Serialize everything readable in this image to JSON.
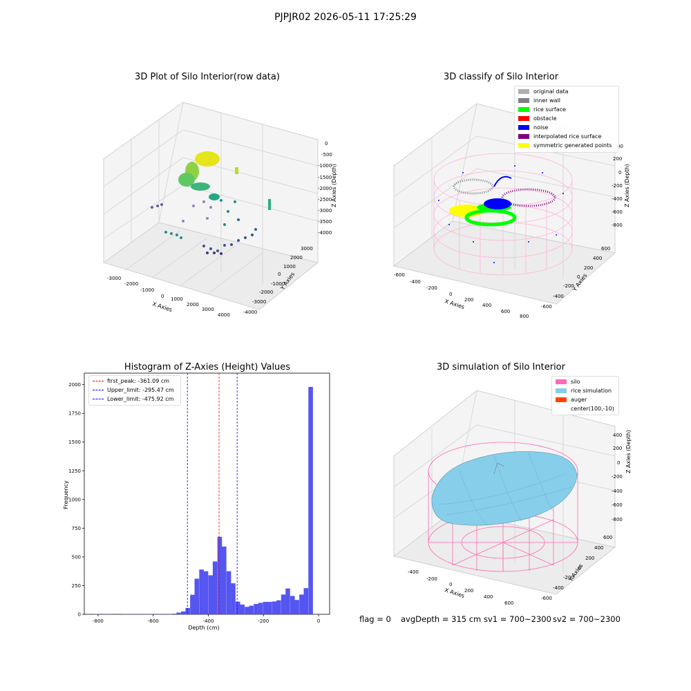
{
  "suptitle": "PJPJR02 2026-05-11 17:25:29",
  "panels": {
    "raw": {
      "title": "3D Plot of Silo Interior(row data)",
      "xlabel": "X Axies",
      "ylabel": "Y Axies",
      "zlabel": "Z Axies (Depth)",
      "xticks": [
        "-3000",
        "-2000",
        "-1000",
        "0",
        "1000",
        "2000",
        "3000",
        "4000"
      ],
      "yticks": [
        "3000",
        "2000",
        "1000",
        "0",
        "-1000",
        "-2000",
        "-3000",
        "-4000"
      ],
      "zticks": [
        "0",
        "-500",
        "-1000",
        "-1500",
        "-2000",
        "-2500",
        "-3000",
        "-3500",
        "-4000"
      ]
    },
    "classify": {
      "title": "3D classify of Silo Interior",
      "xlabel": "X Axies",
      "ylabel": "Y Axies",
      "zlabel": "Z Axies (Depth)",
      "xticks": [
        "-600",
        "-400",
        "-200",
        "0",
        "200",
        "400",
        "600",
        "800"
      ],
      "yticks": [
        "600",
        "400",
        "200",
        "0",
        "-200",
        "-400",
        "-600"
      ],
      "zticks": [
        "200",
        "0",
        "-200",
        "-400",
        "-600",
        "-800"
      ],
      "zticks_top_cut": "00",
      "legend": [
        {
          "label": "original data",
          "color": "#b0b0b0"
        },
        {
          "label": "inner wall",
          "color": "#808080"
        },
        {
          "label": "rice surface",
          "color": "#00ff00"
        },
        {
          "label": "obstacle",
          "color": "#ff0000"
        },
        {
          "label": "noise",
          "color": "#0000ff"
        },
        {
          "label": "interpolated rice surface",
          "color": "#800080"
        },
        {
          "label": "symmetric generated points",
          "color": "#ffff00"
        }
      ]
    },
    "simulation": {
      "title": "3D simulation of Silo Interior",
      "xlabel": "X Axies",
      "ylabel": "Y Axies",
      "zlabel": "Z Axies (Depth)",
      "xticks": [
        "-400",
        "-200",
        "0",
        "200",
        "400",
        "600"
      ],
      "yticks": [
        "600",
        "400",
        "200",
        "0",
        "-200",
        "-400",
        "-600"
      ],
      "zticks": [
        "400",
        "200",
        "0",
        "-200",
        "-400",
        "-600",
        "-800"
      ],
      "legend": [
        {
          "label": "silo",
          "color": "#ff69b4"
        },
        {
          "label": "rice simulation",
          "color": "#87ceeb"
        },
        {
          "label": "auger",
          "color": "#ff4500"
        },
        {
          "label": "center(100,-10)",
          "color": ""
        }
      ]
    }
  },
  "footer": {
    "flag": "flag = 0",
    "avg": "avgDepth = 315 cm",
    "sv1": "sv1 = 700~2300",
    "sv2": "sv2 = 700~2300"
  },
  "chart_data": [
    {
      "type": "bar",
      "title": "Histogram of Z-Axies (Height) Values",
      "xlabel": "Depth (cm)",
      "ylabel": "Frequency",
      "xlim": [
        -850,
        40
      ],
      "ylim": [
        0,
        2100
      ],
      "xticks": [
        -800,
        -600,
        -400,
        -200,
        0
      ],
      "yticks": [
        0,
        250,
        500,
        750,
        1000,
        1250,
        1500,
        1750,
        2000
      ],
      "bin_width": 16.5,
      "bins": [
        {
          "x": -813,
          "y": 3
        },
        {
          "x": -796,
          "y": 0
        },
        {
          "x": -780,
          "y": 2
        },
        {
          "x": -763,
          "y": 2
        },
        {
          "x": -747,
          "y": 0
        },
        {
          "x": -730,
          "y": 0
        },
        {
          "x": -714,
          "y": 2
        },
        {
          "x": -697,
          "y": 2
        },
        {
          "x": -681,
          "y": 2
        },
        {
          "x": -664,
          "y": 2
        },
        {
          "x": -648,
          "y": 2
        },
        {
          "x": -631,
          "y": 2
        },
        {
          "x": -615,
          "y": 2
        },
        {
          "x": -598,
          "y": 2
        },
        {
          "x": -582,
          "y": 2
        },
        {
          "x": -565,
          "y": 2
        },
        {
          "x": -549,
          "y": 2
        },
        {
          "x": -532,
          "y": 5
        },
        {
          "x": -516,
          "y": 15
        },
        {
          "x": -499,
          "y": 25
        },
        {
          "x": -483,
          "y": 55
        },
        {
          "x": -466,
          "y": 170
        },
        {
          "x": -450,
          "y": 310
        },
        {
          "x": -433,
          "y": 390
        },
        {
          "x": -417,
          "y": 375
        },
        {
          "x": -400,
          "y": 340
        },
        {
          "x": -384,
          "y": 460
        },
        {
          "x": -367,
          "y": 675
        },
        {
          "x": -351,
          "y": 590
        },
        {
          "x": -334,
          "y": 375
        },
        {
          "x": -318,
          "y": 270
        },
        {
          "x": -301,
          "y": 110
        },
        {
          "x": -285,
          "y": 85
        },
        {
          "x": -268,
          "y": 65
        },
        {
          "x": -252,
          "y": 75
        },
        {
          "x": -235,
          "y": 90
        },
        {
          "x": -219,
          "y": 100
        },
        {
          "x": -202,
          "y": 108
        },
        {
          "x": -186,
          "y": 108
        },
        {
          "x": -169,
          "y": 112
        },
        {
          "x": -153,
          "y": 122
        },
        {
          "x": -136,
          "y": 172
        },
        {
          "x": -120,
          "y": 225
        },
        {
          "x": -103,
          "y": 160
        },
        {
          "x": -87,
          "y": 125
        },
        {
          "x": -70,
          "y": 172
        },
        {
          "x": -54,
          "y": 228
        },
        {
          "x": -37,
          "y": 1980
        }
      ],
      "vlines": [
        {
          "label": "first_peak: -361.09 cm",
          "x": -361.09,
          "color": "#ff0000"
        },
        {
          "label": "Upper_limit: -295.47 cm",
          "x": -295.47,
          "color": "#0000ff"
        },
        {
          "label": "Lower_limit: -475.92 cm",
          "x": -475.92,
          "color": "#0000ff"
        }
      ],
      "bar_color": "#4c4cf0"
    }
  ]
}
